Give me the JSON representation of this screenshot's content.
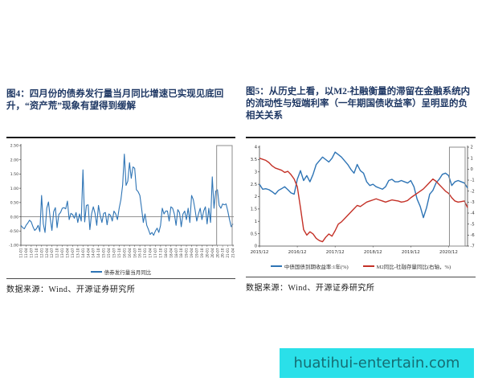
{
  "figure4": {
    "title": "图4：四月份的债券发行量当月同比增速已实现见底回升，“资产荒”现象有望得到缓解",
    "source": "数据来源：Wind、开源证券研究所"
  },
  "figure5": {
    "title": "图5：从历史上看，以M2-社融衡量的滞留在金融系统内的流动性与短端利率（一年期国债收益率）呈明显的负相关关系",
    "source": "数据来源：Wind、开源证券研究所"
  },
  "watermark": {
    "text": "huatihui-entertain.com",
    "background_color": "#2AE0E9",
    "text_color": "#156D73"
  },
  "chart_data": [
    {
      "type": "line",
      "caption": "四月份的债券发行量当月同比增速已实现见底回升，“资产荒”现象有望得到缓解",
      "x_start": "11-01",
      "x_frequency": "monthly",
      "x_tick_labels": [
        "11-01",
        "11-04",
        "11-07",
        "11-10",
        "12-01",
        "12-04",
        "12-07",
        "12-10",
        "13-01",
        "13-04",
        "13-07",
        "13-10",
        "14-01",
        "14-04",
        "14-07",
        "14-10",
        "15-01",
        "15-04",
        "15-07",
        "15-10",
        "16-01",
        "16-04",
        "16-07",
        "16-10",
        "17-01",
        "17-04",
        "17-07",
        "17-10",
        "18-01",
        "18-04",
        "18-07",
        "18-10",
        "19-01",
        "19-04",
        "19-07",
        "19-10",
        "20-01",
        "20-04",
        "20-07",
        "20-10",
        "21-01",
        "21-04"
      ],
      "x_label_rotate": true,
      "left_ylim": [
        -1.0,
        2.5
      ],
      "left_yticks": [
        "2.50",
        "2.00",
        "1.50",
        "1.00",
        "0.50",
        "0.00",
        "-0.50",
        "-1.00"
      ],
      "zero_line": true,
      "grid": false,
      "legend_position": "bottom",
      "highlight": {
        "from": "20-07",
        "to": "21-04"
      },
      "series": [
        {
          "name": "债券发行量当月同比",
          "axis": "left",
          "color": "#2E74B5",
          "values": [
            -0.3,
            -0.38,
            -0.42,
            -0.3,
            -0.22,
            -0.12,
            -0.18,
            -0.35,
            -0.48,
            -0.42,
            -0.3,
            -0.52,
            0.75,
            -0.25,
            -0.55,
            0.3,
            0.52,
            -0.05,
            -0.48,
            0.18,
            0.32,
            -0.38,
            0.08,
            0.15,
            0.3,
            0.32,
            0.28,
            0.55,
            -0.1,
            0.12,
            0.08,
            -0.05,
            0.15,
            -0.2,
            0.1,
            -0.15,
            1.65,
            -0.18,
            0.4,
            0.42,
            -0.45,
            0.1,
            0.35,
            0.12,
            -0.3,
            0.4,
            0.05,
            -0.2,
            0.12,
            0.15,
            -0.28,
            0.1,
            0.05,
            -0.15,
            0.2,
            0.1,
            -0.1,
            0.3,
            0.6,
            1.1,
            2.2,
            1.1,
            1.25,
            1.9,
            1.35,
            1.75,
            1.7,
            0.95,
            0.88,
            0.75,
            0.3,
            -0.2,
            0.1,
            -0.3,
            -0.45,
            -0.62,
            -0.55,
            -0.65,
            -0.5,
            -0.4,
            -0.55,
            -0.3,
            0.3,
            0.1,
            0.2,
            0.2,
            -0.15,
            0.35,
            0.3,
            0.1,
            -0.3,
            0.25,
            0.15,
            -0.35,
            0.1,
            0.2,
            -0.1,
            0.3,
            -0.2,
            0.75,
            0.6,
            0.25,
            -0.15,
            0.1,
            0.3,
            -0.1,
            0.2,
            0.35,
            -0.25,
            0.3,
            -0.2,
            1.4,
            0.3,
            0.9,
            0.95,
            0.4,
            0.3,
            0.45,
            0.42,
            0.45,
            0.2,
            -0.1,
            -0.35,
            -0.25
          ]
        }
      ]
    },
    {
      "type": "line",
      "caption": "从历史上看，以M2-社融衡量的滞留在金融系统内的流动性与短端利率（一年期国债收益率）呈明显的负相关关系",
      "x_start": "2015/12",
      "x_frequency": "monthly",
      "x_tick_labels": [
        "2015/12",
        "2016/12",
        "2017/12",
        "2018/12",
        "2019/12",
        "2020/12"
      ],
      "x_label_rotate": false,
      "left_ylim": [
        0,
        4
      ],
      "left_yticks": [
        "4",
        "3.5",
        "3",
        "2.5",
        "2",
        "1.5",
        "1",
        "0.5",
        "0"
      ],
      "right_ylim": [
        -7,
        2
      ],
      "right_yticks": [
        "2",
        "1",
        "0",
        "-1",
        "-2",
        "-3",
        "-4",
        "-5",
        "-6",
        "-7"
      ],
      "zero_line": false,
      "grid": false,
      "legend_position": "bottom",
      "highlight": {
        "from": "2020/12",
        "to": "2021/06"
      },
      "series": [
        {
          "name": "中债国债到期收益率:1年(%)",
          "axis": "left",
          "color": "#2E74B5",
          "values": [
            2.5,
            2.3,
            2.32,
            2.28,
            2.2,
            2.1,
            2.25,
            2.32,
            2.4,
            2.28,
            2.15,
            2.1,
            2.7,
            3.05,
            2.65,
            2.85,
            2.6,
            2.9,
            3.3,
            3.45,
            3.6,
            3.5,
            3.4,
            3.55,
            3.8,
            3.7,
            3.6,
            3.45,
            3.3,
            3.1,
            2.95,
            3.3,
            3.05,
            2.95,
            2.6,
            2.45,
            2.5,
            2.4,
            2.35,
            2.3,
            2.4,
            2.65,
            2.7,
            2.6,
            2.6,
            2.65,
            2.6,
            2.55,
            2.65,
            2.4,
            1.9,
            1.6,
            1.15,
            1.55,
            2.1,
            2.25,
            2.55,
            2.7,
            2.9,
            2.95,
            2.85,
            2.45,
            2.6,
            2.65,
            2.6,
            2.55,
            2.35
          ]
        },
        {
          "name": "M2同比-社融存量同比(右轴，%)",
          "axis": "right",
          "color": "#C43127",
          "values": [
            1.0,
            0.9,
            0.8,
            0.6,
            0.3,
            0.1,
            0.0,
            -0.1,
            -0.3,
            -0.2,
            -0.5,
            -0.9,
            -1.6,
            -3.5,
            -5.5,
            -6.0,
            -5.7,
            -5.9,
            -6.3,
            -6.5,
            -6.6,
            -6.2,
            -5.9,
            -6.1,
            -5.6,
            -5.0,
            -4.8,
            -4.5,
            -4.2,
            -3.9,
            -3.6,
            -3.3,
            -3.4,
            -3.2,
            -3.0,
            -2.9,
            -2.8,
            -2.7,
            -2.8,
            -2.9,
            -3.0,
            -2.9,
            -2.8,
            -2.85,
            -2.9,
            -3.0,
            -2.95,
            -2.85,
            -2.6,
            -2.4,
            -2.2,
            -2.0,
            -1.8,
            -1.5,
            -1.2,
            -0.9,
            -1.1,
            -1.4,
            -1.7,
            -2.0,
            -2.2,
            -2.6,
            -2.9,
            -3.0,
            -2.95,
            -2.9,
            -3.5
          ]
        }
      ]
    }
  ]
}
